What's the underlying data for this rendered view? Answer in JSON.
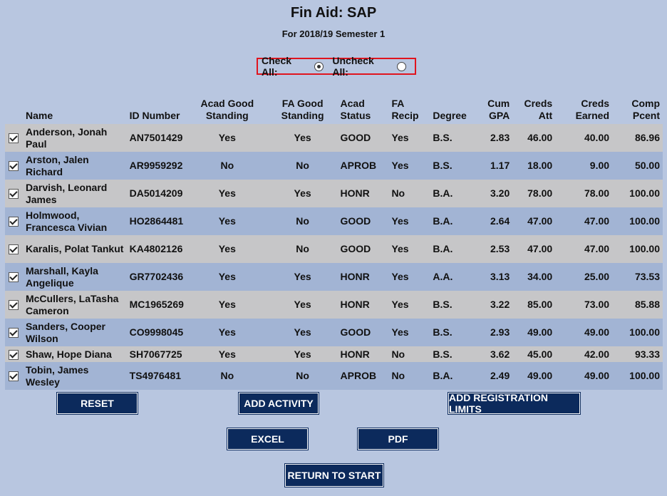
{
  "header": {
    "title": "Fin Aid: SAP",
    "subtitle": "For 2018/19 Semester 1"
  },
  "selection": {
    "check_all_label": "Check All:",
    "uncheck_all_label": "Uncheck All:"
  },
  "table": {
    "columns": [
      "Name",
      "ID Number",
      "Acad Good Standing",
      "FA Good Standing",
      "Acad Status",
      "FA Recip",
      "Degree",
      "Cum GPA",
      "Creds Att",
      "Creds Earned",
      "Comp Pcent"
    ],
    "rows": [
      {
        "name": "Anderson, Jonah Paul",
        "id": "AN7501429",
        "acad_good": "Yes",
        "fa_good": "Yes",
        "acad_status": "GOOD",
        "fa_recip": "Yes",
        "degree": "B.S.",
        "gpa": "2.83",
        "att": "46.00",
        "earned": "40.00",
        "pcent": "86.96"
      },
      {
        "name": "Arston, Jalen Richard",
        "id": "AR9959292",
        "acad_good": "No",
        "fa_good": "No",
        "acad_status": "APROB",
        "fa_recip": "Yes",
        "degree": "B.S.",
        "gpa": "1.17",
        "att": "18.00",
        "earned": "9.00",
        "pcent": "50.00"
      },
      {
        "name": "Darvish, Leonard James",
        "id": "DA5014209",
        "acad_good": "Yes",
        "fa_good": "Yes",
        "acad_status": "HONR",
        "fa_recip": "No",
        "degree": "B.A.",
        "gpa": "3.20",
        "att": "78.00",
        "earned": "78.00",
        "pcent": "100.00"
      },
      {
        "name": "Holmwood, Francesca Vivian",
        "id": "HO2864481",
        "acad_good": "Yes",
        "fa_good": "No",
        "acad_status": "GOOD",
        "fa_recip": "Yes",
        "degree": "B.A.",
        "gpa": "2.64",
        "att": "47.00",
        "earned": "47.00",
        "pcent": "100.00"
      },
      {
        "name": "Karalis, Polat Tankut",
        "id": "KA4802126",
        "acad_good": "Yes",
        "fa_good": "No",
        "acad_status": "GOOD",
        "fa_recip": "Yes",
        "degree": "B.A.",
        "gpa": "2.53",
        "att": "47.00",
        "earned": "47.00",
        "pcent": "100.00"
      },
      {
        "name": "Marshall, Kayla Angelique",
        "id": "GR7702436",
        "acad_good": "Yes",
        "fa_good": "Yes",
        "acad_status": "HONR",
        "fa_recip": "Yes",
        "degree": "A.A.",
        "gpa": "3.13",
        "att": "34.00",
        "earned": "25.00",
        "pcent": "73.53"
      },
      {
        "name": "McCullers, LaTasha Cameron",
        "id": "MC1965269",
        "acad_good": "Yes",
        "fa_good": "Yes",
        "acad_status": "HONR",
        "fa_recip": "Yes",
        "degree": "B.S.",
        "gpa": "3.22",
        "att": "85.00",
        "earned": "73.00",
        "pcent": "85.88"
      },
      {
        "name": "Sanders, Cooper Wilson",
        "id": "CO9998045",
        "acad_good": "Yes",
        "fa_good": "Yes",
        "acad_status": "GOOD",
        "fa_recip": "Yes",
        "degree": "B.S.",
        "gpa": "2.93",
        "att": "49.00",
        "earned": "49.00",
        "pcent": "100.00"
      },
      {
        "name": "Shaw, Hope Diana",
        "id": "SH7067725",
        "acad_good": "Yes",
        "fa_good": "Yes",
        "acad_status": "HONR",
        "fa_recip": "No",
        "degree": "B.S.",
        "gpa": "3.62",
        "att": "45.00",
        "earned": "42.00",
        "pcent": "93.33"
      },
      {
        "name": "Tobin, James Wesley",
        "id": "TS4976481",
        "acad_good": "No",
        "fa_good": "No",
        "acad_status": "APROB",
        "fa_recip": "No",
        "degree": "B.A.",
        "gpa": "2.49",
        "att": "49.00",
        "earned": "49.00",
        "pcent": "100.00"
      }
    ]
  },
  "buttons": {
    "reset": "RESET",
    "add_activity": "ADD ACTIVITY",
    "add_registration_limits": "ADD REGISTRATION LIMITS",
    "excel": "EXCEL",
    "pdf": "PDF",
    "return_to_start": "RETURN TO START"
  },
  "colors": {
    "button_bg": "#0c2a5c",
    "page_bg": "#b8c6e0",
    "row_odd": "#c6c6c8",
    "row_even": "#a2b4d4",
    "highlight_border": "#e0141e"
  }
}
